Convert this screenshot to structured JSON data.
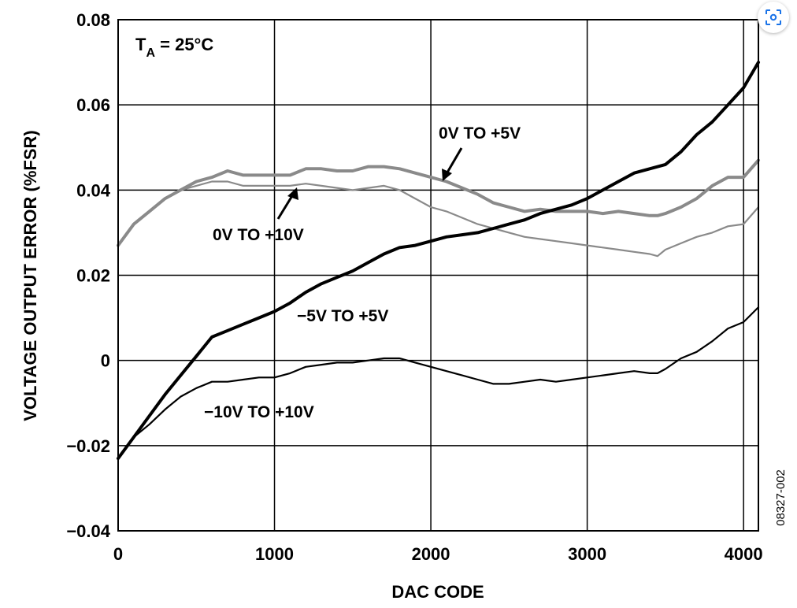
{
  "chart_data": {
    "type": "line",
    "xlabel": "DAC CODE",
    "ylabel": "VOLTAGE OUTPUT ERROR (%FSR)",
    "xlim": [
      0,
      4095
    ],
    "ylim": [
      -0.04,
      0.08
    ],
    "xticks": [
      0,
      1000,
      2000,
      3000,
      4000
    ],
    "xtick_labels": [
      "0",
      "1000",
      "2000",
      "3000",
      "4000"
    ],
    "yticks": [
      0.08,
      0.06,
      0.04,
      0.02,
      0,
      -0.02,
      -0.04
    ],
    "ytick_labels": [
      "0.08",
      "0.06",
      "0.04",
      "0.02",
      "0",
      "−0.02",
      "−0.04"
    ],
    "grid": true,
    "annotation": {
      "main": "T",
      "sub": "A",
      "rest": " = 25°C"
    },
    "figure_id": "08327-002",
    "series": [
      {
        "name": "0V TO +5V",
        "color": "#8a8a8a",
        "weight": "thick",
        "x": [
          0,
          100,
          200,
          300,
          400,
          500,
          600,
          700,
          800,
          900,
          1000,
          1100,
          1200,
          1300,
          1400,
          1500,
          1600,
          1700,
          1800,
          1900,
          2000,
          2100,
          2200,
          2300,
          2400,
          2500,
          2600,
          2700,
          2800,
          2900,
          3000,
          3100,
          3200,
          3300,
          3400,
          3450,
          3500,
          3600,
          3700,
          3800,
          3900,
          4000,
          4095
        ],
        "y": [
          0.027,
          0.032,
          0.035,
          0.038,
          0.04,
          0.042,
          0.043,
          0.0445,
          0.0435,
          0.0435,
          0.0435,
          0.0435,
          0.045,
          0.045,
          0.0445,
          0.0445,
          0.0455,
          0.0455,
          0.045,
          0.044,
          0.043,
          0.042,
          0.0405,
          0.039,
          0.037,
          0.036,
          0.035,
          0.0355,
          0.035,
          0.035,
          0.035,
          0.0345,
          0.035,
          0.0345,
          0.034,
          0.034,
          0.0345,
          0.036,
          0.038,
          0.041,
          0.043,
          0.043,
          0.047
        ]
      },
      {
        "name": "0V TO +10V",
        "color": "#8a8a8a",
        "weight": "thin",
        "x": [
          0,
          100,
          200,
          300,
          400,
          500,
          600,
          700,
          800,
          900,
          1000,
          1100,
          1200,
          1300,
          1400,
          1500,
          1600,
          1700,
          1800,
          1900,
          2000,
          2100,
          2200,
          2300,
          2400,
          2500,
          2600,
          2700,
          2800,
          2900,
          3000,
          3100,
          3200,
          3300,
          3400,
          3450,
          3500,
          3600,
          3700,
          3800,
          3900,
          4000,
          4095
        ],
        "y": [
          0.027,
          0.032,
          0.035,
          0.038,
          0.04,
          0.041,
          0.042,
          0.042,
          0.041,
          0.041,
          0.041,
          0.041,
          0.0415,
          0.041,
          0.0405,
          0.04,
          0.0405,
          0.041,
          0.04,
          0.038,
          0.036,
          0.035,
          0.0335,
          0.032,
          0.031,
          0.03,
          0.029,
          0.0285,
          0.028,
          0.0275,
          0.027,
          0.0265,
          0.026,
          0.0255,
          0.025,
          0.0245,
          0.026,
          0.0275,
          0.029,
          0.03,
          0.0315,
          0.032,
          0.036
        ]
      },
      {
        "name": "−5V TO +5V",
        "color": "#000000",
        "weight": "thick",
        "x": [
          0,
          100,
          200,
          300,
          400,
          500,
          600,
          700,
          800,
          900,
          1000,
          1100,
          1200,
          1300,
          1400,
          1500,
          1600,
          1700,
          1800,
          1900,
          2000,
          2100,
          2200,
          2300,
          2400,
          2500,
          2600,
          2700,
          2800,
          2900,
          3000,
          3100,
          3200,
          3300,
          3400,
          3500,
          3600,
          3700,
          3800,
          3900,
          4000,
          4095
        ],
        "y": [
          -0.023,
          -0.018,
          -0.013,
          -0.008,
          -0.0035,
          0.001,
          0.0055,
          0.007,
          0.0085,
          0.01,
          0.0115,
          0.0135,
          0.016,
          0.018,
          0.0195,
          0.021,
          0.023,
          0.025,
          0.0265,
          0.027,
          0.028,
          0.029,
          0.0295,
          0.03,
          0.031,
          0.032,
          0.033,
          0.0345,
          0.0355,
          0.0365,
          0.038,
          0.04,
          0.042,
          0.044,
          0.045,
          0.046,
          0.049,
          0.053,
          0.056,
          0.06,
          0.064,
          0.07
        ]
      },
      {
        "name": "−10V TO +10V",
        "color": "#000000",
        "weight": "thin",
        "x": [
          0,
          100,
          200,
          300,
          400,
          500,
          600,
          700,
          800,
          900,
          1000,
          1100,
          1200,
          1300,
          1400,
          1500,
          1600,
          1700,
          1800,
          1900,
          2000,
          2100,
          2200,
          2300,
          2400,
          2500,
          2600,
          2700,
          2800,
          2900,
          3000,
          3100,
          3200,
          3300,
          3400,
          3450,
          3500,
          3600,
          3700,
          3800,
          3900,
          4000,
          4095
        ],
        "y": [
          -0.023,
          -0.018,
          -0.015,
          -0.0115,
          -0.0085,
          -0.0065,
          -0.005,
          -0.005,
          -0.0045,
          -0.004,
          -0.004,
          -0.003,
          -0.0015,
          -0.001,
          -0.0005,
          -0.0005,
          0.0,
          0.0005,
          0.0005,
          -0.0005,
          -0.0015,
          -0.0025,
          -0.0035,
          -0.0045,
          -0.0055,
          -0.0055,
          -0.005,
          -0.0045,
          -0.005,
          -0.0045,
          -0.004,
          -0.0035,
          -0.003,
          -0.0025,
          -0.003,
          -0.003,
          -0.002,
          0.0005,
          0.002,
          0.0045,
          0.0075,
          0.009,
          0.0125
        ]
      }
    ]
  },
  "labels": {
    "s1": "0V TO +5V",
    "s2": "0V TO +10V",
    "s3": "−5V TO +5V",
    "s4": "−10V TO +10V"
  },
  "ui": {
    "lens_icon": "lens-search-icon"
  }
}
